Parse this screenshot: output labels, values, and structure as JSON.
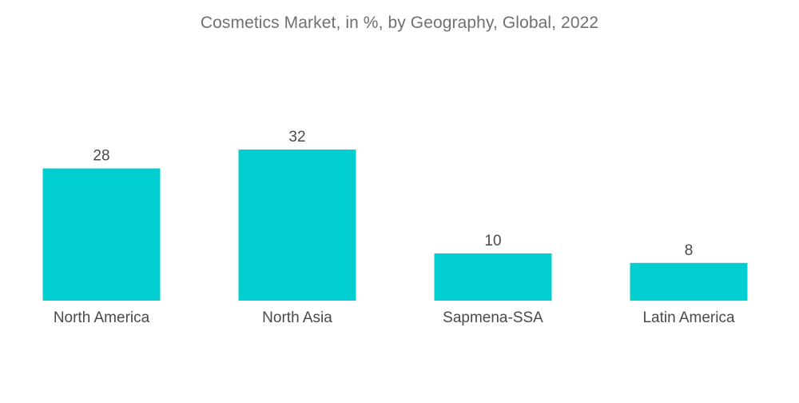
{
  "chart_data": {
    "type": "bar",
    "title": "Cosmetics Market, in %, by Geography, Global, 2022",
    "categories": [
      "North America",
      "North Asia",
      "Sapmena-SSA",
      "Latin America"
    ],
    "values": [
      28,
      32,
      10,
      8
    ],
    "xlabel": "",
    "ylabel": "",
    "ylim": [
      0,
      32
    ],
    "grid": false,
    "bar_color": "#00ced1"
  }
}
